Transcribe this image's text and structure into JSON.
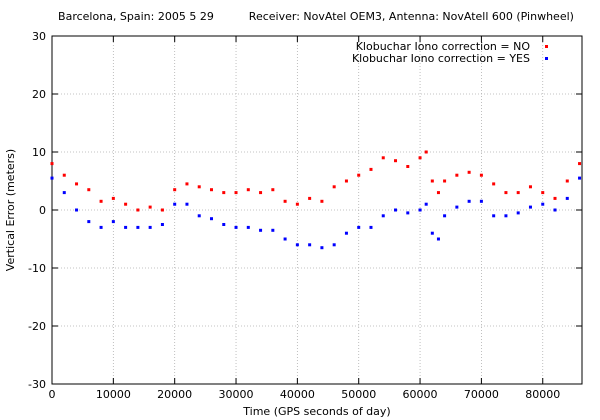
{
  "chart_data": {
    "type": "scatter",
    "title": "Barcelona, Spain: 2005 5 29          Receiver: NovAtel OEM3, Antenna: NovAtell 600 (Pinwheel)",
    "xlabel": "Time (GPS seconds of day)",
    "ylabel": "Vertical Error (meters)",
    "xlim": [
      0,
      86400
    ],
    "ylim": [
      -30,
      30
    ],
    "x_ticks": [
      0,
      10000,
      20000,
      30000,
      40000,
      50000,
      60000,
      70000,
      80000
    ],
    "y_ticks": [
      -30,
      -20,
      -10,
      0,
      10,
      20,
      30
    ],
    "grid": true,
    "legend_position": "top-right",
    "series": [
      {
        "name": "Klobuchar Iono correction = NO",
        "color": "#ff0000",
        "x": [
          0,
          2000,
          4000,
          6000,
          8000,
          10000,
          12000,
          14000,
          16000,
          18000,
          20000,
          22000,
          24000,
          26000,
          28000,
          30000,
          32000,
          34000,
          36000,
          38000,
          40000,
          42000,
          44000,
          46000,
          48000,
          50000,
          52000,
          54000,
          56000,
          58000,
          60000,
          61000,
          62000,
          63000,
          64000,
          66000,
          68000,
          70000,
          72000,
          74000,
          76000,
          78000,
          80000,
          82000,
          84000,
          86000
        ],
        "values": [
          8,
          6,
          4.5,
          3.5,
          1.5,
          2,
          1,
          0,
          0.5,
          0,
          3.5,
          4.5,
          4,
          3.5,
          3,
          3,
          3.5,
          3,
          3.5,
          1.5,
          1,
          2,
          1.5,
          4,
          5,
          6,
          7,
          9,
          8.5,
          7.5,
          9,
          10,
          5,
          3,
          5,
          6,
          6.5,
          6,
          4.5,
          3,
          3,
          4,
          3,
          2,
          5,
          8
        ]
      },
      {
        "name": "Klobuchar Iono correction = YES",
        "color": "#0000ff",
        "x": [
          0,
          2000,
          4000,
          6000,
          8000,
          10000,
          12000,
          14000,
          16000,
          18000,
          20000,
          22000,
          24000,
          26000,
          28000,
          30000,
          32000,
          34000,
          36000,
          38000,
          40000,
          42000,
          44000,
          46000,
          48000,
          50000,
          52000,
          54000,
          56000,
          58000,
          60000,
          61000,
          62000,
          63000,
          64000,
          66000,
          68000,
          70000,
          72000,
          74000,
          76000,
          78000,
          80000,
          82000,
          84000,
          86000
        ],
        "values": [
          5.5,
          3,
          0,
          -2,
          -3,
          -2,
          -3,
          -3,
          -3,
          -2.5,
          1,
          1,
          -1,
          -1.5,
          -2.5,
          -3,
          -3,
          -3.5,
          -3.5,
          -5,
          -6,
          -6,
          -6.5,
          -6,
          -4,
          -3,
          -3,
          -1,
          0,
          -0.5,
          0,
          1,
          -4,
          -5,
          -1,
          0.5,
          1.5,
          1.5,
          -1,
          -1,
          -0.5,
          0.5,
          1,
          0,
          2,
          5.5
        ]
      }
    ]
  }
}
